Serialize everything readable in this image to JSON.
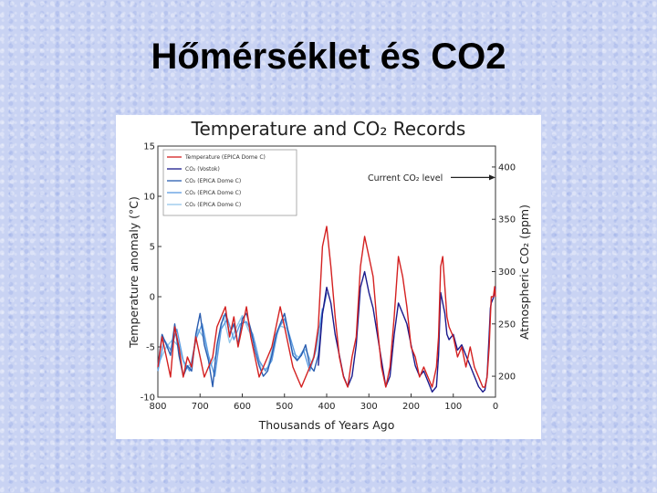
{
  "slide": {
    "title": "Hőmérséklet és CO2"
  },
  "chart_data": {
    "type": "line",
    "title": "Temperature and CO₂ Records",
    "xlabel": "Thousands of Years Ago",
    "ylabel_left": "Temperature anomaly (°C)",
    "ylabel_right": "Atmospheric CO₂ (ppm)",
    "xlim": [
      800,
      0
    ],
    "ylim_left": [
      -10,
      15
    ],
    "ylim_right": [
      180,
      420
    ],
    "x_ticks": [
      "800",
      "700",
      "600",
      "500",
      "400",
      "300",
      "200",
      "100",
      "0"
    ],
    "y_left_ticks": [
      "15",
      "10",
      "5",
      "0",
      "-5",
      "-10"
    ],
    "y_right_ticks": [
      "400",
      "350",
      "300",
      "250",
      "200"
    ],
    "grid": false,
    "legend_position": "top-left",
    "annotation": {
      "text": "Current CO₂ level",
      "points_to_ppm": 390
    },
    "colors": {
      "temperature": "#d42020",
      "vostok": "#1a1a8c",
      "dome_c_1": "#2a5db0",
      "dome_c_2": "#5c9be0",
      "dome_c_3": "#93c7ea"
    },
    "series": [
      {
        "name": "Temperature (EPICA Dome C)",
        "axis": "left",
        "x": [
          800,
          790,
          780,
          770,
          760,
          750,
          740,
          730,
          720,
          710,
          700,
          690,
          680,
          670,
          660,
          650,
          640,
          630,
          620,
          610,
          600,
          590,
          580,
          570,
          560,
          550,
          540,
          530,
          520,
          510,
          500,
          490,
          480,
          470,
          460,
          450,
          440,
          430,
          420,
          410,
          400,
          390,
          380,
          370,
          360,
          350,
          340,
          330,
          320,
          310,
          300,
          290,
          280,
          270,
          260,
          250,
          240,
          230,
          220,
          210,
          200,
          190,
          180,
          170,
          160,
          150,
          140,
          135,
          130,
          125,
          120,
          115,
          110,
          100,
          90,
          80,
          70,
          60,
          50,
          40,
          30,
          25,
          20,
          15,
          12,
          10,
          5,
          2,
          0
        ],
        "y": [
          -7,
          -4,
          -6,
          -8,
          -3,
          -5,
          -8,
          -6,
          -7,
          -4,
          -6,
          -8,
          -7,
          -6,
          -3,
          -2,
          -1,
          -4,
          -2,
          -5,
          -3,
          -1,
          -4,
          -6,
          -8,
          -7,
          -6,
          -5,
          -3,
          -1,
          -3,
          -5,
          -7,
          -8,
          -9,
          -8,
          -7,
          -6,
          -3,
          5,
          7,
          3,
          -2,
          -6,
          -8,
          -9,
          -6,
          -4,
          3,
          6,
          4,
          2,
          -3,
          -7,
          -9,
          -7,
          -2,
          4,
          2,
          -1,
          -5,
          -6,
          -8,
          -7,
          -8,
          -9,
          -7,
          -4,
          3,
          4,
          1,
          -2,
          -3,
          -4,
          -6,
          -5,
          -7,
          -5,
          -7,
          -8,
          -9,
          -9,
          -8,
          -5,
          -2,
          0,
          0,
          1,
          0
        ]
      },
      {
        "name": "CO₂ (Vostok)",
        "axis": "right",
        "x": [
          420,
          410,
          400,
          390,
          380,
          370,
          360,
          350,
          340,
          330,
          320,
          310,
          300,
          290,
          280,
          270,
          260,
          250,
          240,
          230,
          220,
          210,
          200,
          190,
          180,
          170,
          160,
          150,
          140,
          135,
          130,
          125,
          120,
          115,
          110,
          100,
          90,
          80,
          70,
          60,
          50,
          40,
          30,
          25,
          20,
          15,
          12,
          10,
          5,
          2,
          0
        ],
        "y": [
          210,
          260,
          285,
          270,
          240,
          220,
          200,
          190,
          200,
          230,
          285,
          300,
          280,
          265,
          240,
          215,
          190,
          200,
          240,
          270,
          260,
          250,
          230,
          210,
          200,
          205,
          195,
          185,
          190,
          220,
          280,
          270,
          260,
          240,
          235,
          240,
          225,
          230,
          220,
          210,
          200,
          190,
          185,
          187,
          200,
          240,
          265,
          270,
          275,
          280,
          285
        ]
      },
      {
        "name": "CO₂ (EPICA Dome C)",
        "axis": "right",
        "x": [
          800,
          790,
          780,
          770,
          760,
          750,
          740,
          730,
          720,
          710,
          700,
          690,
          680,
          670,
          660,
          650,
          640,
          630,
          620,
          610,
          600,
          590,
          580,
          570,
          560,
          550,
          540,
          530,
          520,
          510,
          500,
          490,
          480,
          470,
          460,
          450,
          440,
          430,
          420,
          410,
          400
        ],
        "y": [
          210,
          240,
          230,
          220,
          250,
          220,
          200,
          210,
          205,
          240,
          260,
          230,
          215,
          190,
          230,
          250,
          260,
          240,
          250,
          230,
          255,
          260,
          245,
          225,
          210,
          200,
          205,
          220,
          240,
          250,
          260,
          240,
          220,
          215,
          220,
          230,
          210,
          205,
          220,
          260,
          280
        ]
      },
      {
        "name": "CO₂ (EPICA Dome C)",
        "axis": "right",
        "x": [
          800,
          785,
          770,
          755,
          740,
          725,
          710,
          695,
          680,
          665,
          650,
          635,
          620,
          605,
          590,
          575,
          560,
          545,
          530,
          515,
          500,
          485,
          470,
          455,
          440,
          425,
          410
        ],
        "y": [
          205,
          235,
          225,
          245,
          215,
          205,
          235,
          250,
          220,
          200,
          245,
          255,
          235,
          250,
          252,
          240,
          215,
          205,
          215,
          245,
          255,
          235,
          215,
          225,
          205,
          225,
          265
        ]
      },
      {
        "name": "CO₂ (EPICA Dome C)",
        "axis": "right",
        "x": [
          795,
          780,
          765,
          750,
          735,
          720,
          705,
          690,
          675,
          660,
          645,
          630,
          615,
          600,
          585,
          570,
          555,
          540,
          525,
          510,
          495,
          480,
          465,
          450,
          435,
          420
        ],
        "y": [
          215,
          228,
          235,
          228,
          208,
          212,
          245,
          236,
          210,
          222,
          258,
          232,
          246,
          258,
          244,
          232,
          206,
          208,
          232,
          248,
          246,
          222,
          218,
          226,
          212,
          240
        ]
      }
    ]
  }
}
